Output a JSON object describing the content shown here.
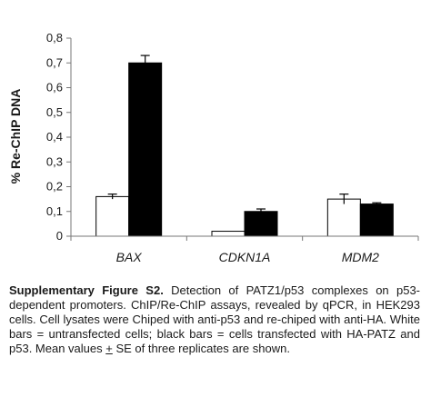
{
  "chart_data": {
    "type": "bar",
    "title": "",
    "xlabel": "",
    "ylabel": "% Re-ChIP DNA",
    "ylim": [
      0,
      0.8
    ],
    "yticks": [
      "0",
      "0,1",
      "0,2",
      "0,3",
      "0,4",
      "0,5",
      "0,6",
      "0,7",
      "0,8"
    ],
    "grid": false,
    "categories": [
      "BAX",
      "CDKN1A",
      "MDM2"
    ],
    "series": [
      {
        "values": [
          0.16,
          0.02,
          0.15
        ],
        "errors": [
          0.01,
          0.0,
          0.02
        ],
        "color": "#ffffff"
      },
      {
        "values": [
          0.7,
          0.1,
          0.13
        ],
        "errors": [
          0.03,
          0.01,
          0.005
        ],
        "color": "#000000"
      }
    ]
  },
  "caption": {
    "bold": "Supplementary Figure S2.",
    "text_before_pm": " Detection of PATZ1/p53 complexes on p53-dependent promoters. ChIP/Re-ChIP assays, revealed by qPCR, in HEK293 cells. Cell lysates were Chiped with anti-p53 and re-chiped with anti-HA. White bars = untransfected cells; black bars = cells transfected with HA-PATZ and p53. Mean values ",
    "pm": "+",
    "text_after_pm": " SE of three replicates are shown."
  }
}
